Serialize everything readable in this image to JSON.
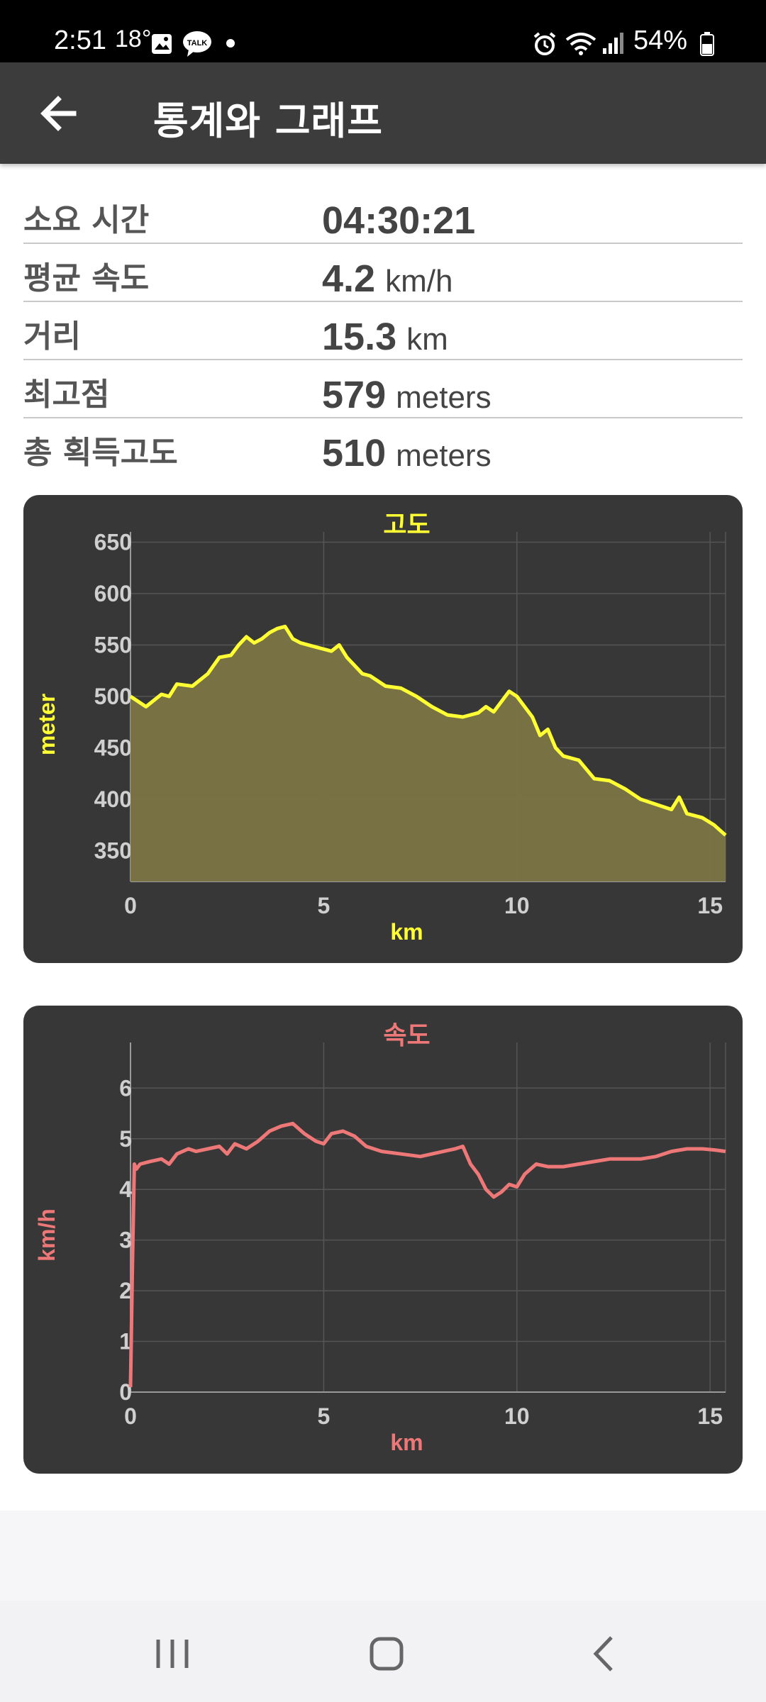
{
  "status_bar": {
    "time": "2:51",
    "temperature": "18°",
    "icons": [
      "gallery-icon",
      "kakaotalk-icon",
      "dot-icon",
      "alarm-icon",
      "wifi-icon",
      "signal-icon",
      "battery-icon"
    ],
    "battery": "54%"
  },
  "app_bar": {
    "title": "통계와 그래프",
    "back_icon": "arrow-left-icon"
  },
  "stats": [
    {
      "label": "소요 시간",
      "value": "04:30:21",
      "unit": ""
    },
    {
      "label": "평균 속도",
      "value": "4.2",
      "unit": "km/h"
    },
    {
      "label": "거리",
      "value": "15.3",
      "unit": "km"
    },
    {
      "label": "최고점",
      "value": "579",
      "unit": "meters"
    },
    {
      "label": "총 획득고도",
      "value": "510",
      "unit": "meters"
    }
  ],
  "chart_data": [
    {
      "type": "area",
      "title": "고도",
      "xlabel": "km",
      "ylabel": "meter",
      "color": "#ffff33",
      "fill": "#7a7444",
      "xlim": [
        0,
        15.4
      ],
      "ylim": [
        320,
        660
      ],
      "xticks": [
        0,
        5,
        10,
        15
      ],
      "yticks": [
        350,
        400,
        450,
        500,
        550,
        600,
        650
      ],
      "grid": true,
      "x": [
        0,
        0.4,
        0.8,
        1.0,
        1.2,
        1.6,
        2.0,
        2.3,
        2.6,
        2.8,
        3.0,
        3.2,
        3.4,
        3.6,
        3.8,
        4.0,
        4.2,
        4.4,
        4.8,
        5.2,
        5.4,
        5.6,
        5.8,
        6.0,
        6.2,
        6.6,
        7.0,
        7.4,
        7.8,
        8.2,
        8.6,
        9.0,
        9.2,
        9.4,
        9.6,
        9.8,
        10.0,
        10.4,
        10.6,
        10.8,
        11.0,
        11.2,
        11.6,
        12.0,
        12.4,
        12.8,
        13.2,
        13.6,
        14.0,
        14.2,
        14.4,
        14.8,
        15.1,
        15.4
      ],
      "y": [
        500,
        490,
        502,
        500,
        512,
        510,
        522,
        538,
        540,
        550,
        558,
        552,
        556,
        562,
        566,
        568,
        556,
        552,
        548,
        544,
        550,
        538,
        530,
        522,
        520,
        510,
        508,
        500,
        490,
        482,
        480,
        484,
        490,
        485,
        495,
        505,
        500,
        480,
        462,
        468,
        450,
        442,
        438,
        420,
        418,
        410,
        400,
        395,
        390,
        402,
        386,
        382,
        375,
        365
      ]
    },
    {
      "type": "line",
      "title": "속도",
      "xlabel": "km",
      "ylabel": "km/h",
      "color": "#ee7777",
      "xlim": [
        0,
        15.4
      ],
      "ylim": [
        0,
        6.9
      ],
      "xticks": [
        0,
        5,
        10,
        15
      ],
      "yticks": [
        0,
        1,
        2,
        3,
        4,
        5,
        6
      ],
      "grid": true,
      "x": [
        0,
        0.05,
        0.1,
        0.15,
        0.25,
        0.5,
        0.8,
        1.0,
        1.2,
        1.5,
        1.7,
        2.0,
        2.3,
        2.5,
        2.7,
        3.0,
        3.3,
        3.6,
        3.9,
        4.2,
        4.5,
        4.8,
        5.0,
        5.2,
        5.5,
        5.8,
        6.1,
        6.5,
        7.0,
        7.5,
        7.8,
        8.1,
        8.4,
        8.6,
        8.8,
        9.0,
        9.2,
        9.4,
        9.6,
        9.8,
        10.0,
        10.2,
        10.5,
        10.8,
        11.2,
        11.6,
        12.0,
        12.4,
        12.8,
        13.2,
        13.6,
        14.0,
        14.4,
        14.8,
        15.1,
        15.4
      ],
      "y": [
        0.1,
        2.5,
        4.5,
        4.4,
        4.5,
        4.55,
        4.6,
        4.5,
        4.7,
        4.8,
        4.75,
        4.8,
        4.85,
        4.7,
        4.9,
        4.8,
        4.95,
        5.15,
        5.25,
        5.3,
        5.1,
        4.95,
        4.9,
        5.1,
        5.15,
        5.05,
        4.85,
        4.75,
        4.7,
        4.65,
        4.7,
        4.75,
        4.8,
        4.85,
        4.5,
        4.3,
        4.0,
        3.85,
        3.95,
        4.1,
        4.05,
        4.3,
        4.5,
        4.45,
        4.45,
        4.5,
        4.55,
        4.6,
        4.6,
        4.6,
        4.65,
        4.75,
        4.8,
        4.8,
        4.78,
        4.75
      ]
    }
  ],
  "nav_bar": {
    "recents_icon": "recents-icon",
    "home_icon": "home-icon",
    "back_icon": "back-chevron-icon"
  }
}
